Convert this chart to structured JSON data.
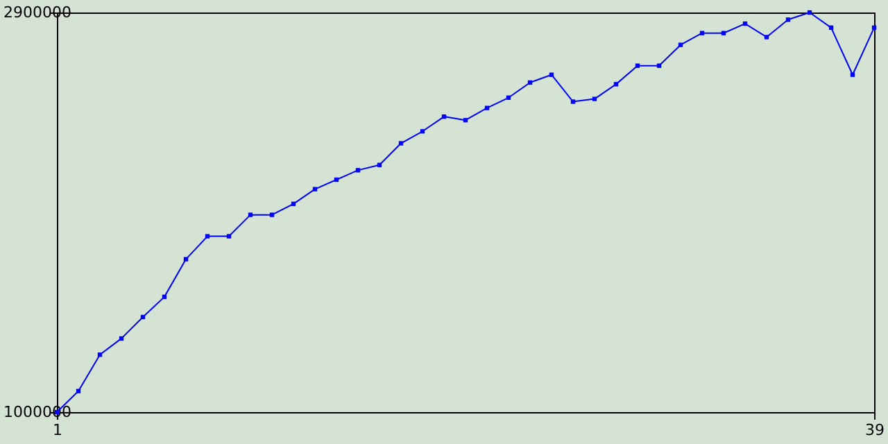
{
  "chart_data": {
    "type": "line",
    "x": [
      1,
      2,
      3,
      4,
      5,
      6,
      7,
      8,
      9,
      10,
      11,
      12,
      13,
      14,
      15,
      16,
      17,
      18,
      19,
      20,
      21,
      22,
      23,
      24,
      25,
      26,
      27,
      28,
      29,
      30,
      31,
      32,
      33,
      34,
      35,
      36,
      37,
      38,
      39
    ],
    "series": [
      {
        "color": "#0000ff",
        "values": [
          1000000,
          1100000,
          1273000,
          1350000,
          1452000,
          1548000,
          1727000,
          1836000,
          1836000,
          1938000,
          1938000,
          1990000,
          2060000,
          2105000,
          2150000,
          2175000,
          2278000,
          2335000,
          2405000,
          2388000,
          2446000,
          2495000,
          2567000,
          2604000,
          2476000,
          2489000,
          2559000,
          2647000,
          2647000,
          2746000,
          2802000,
          2802000,
          2847000,
          2783000,
          2866000,
          2900000,
          2828000,
          2604000,
          2828000
        ]
      }
    ],
    "xlim": [
      1,
      39
    ],
    "xticks": [
      1,
      39
    ],
    "ylim": [
      1000000,
      2900000
    ],
    "yticks": [
      1000000,
      2900000
    ],
    "grid": false,
    "marker": "square",
    "line_style": "solid"
  }
}
